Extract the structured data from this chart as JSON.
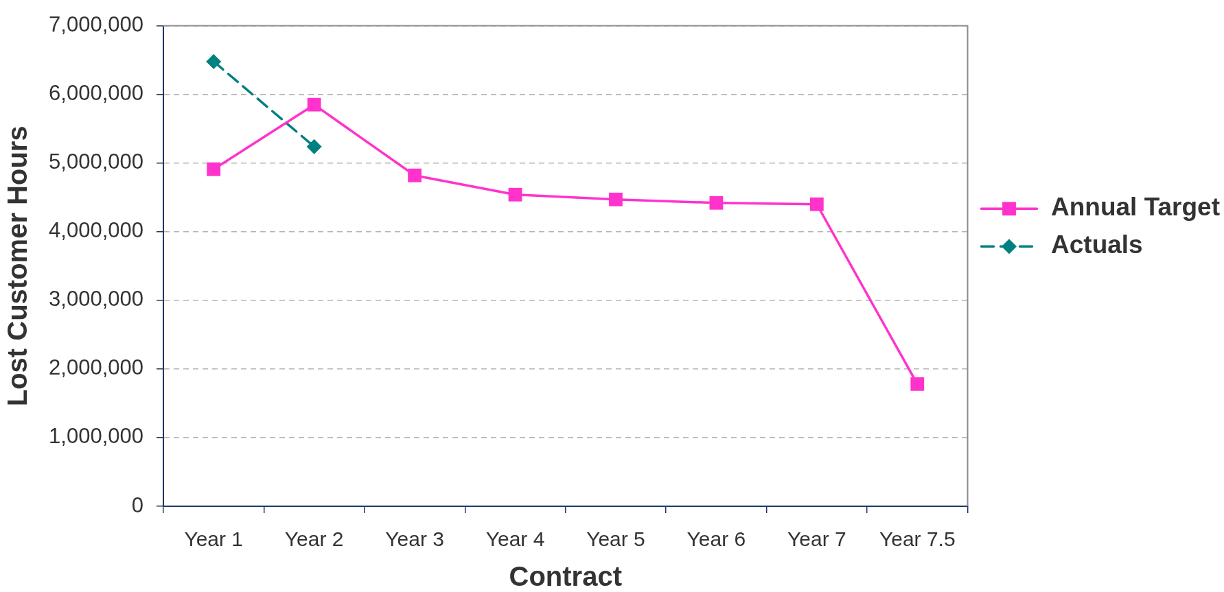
{
  "chart_data": {
    "type": "line",
    "xlabel": "Contract",
    "ylabel": "Lost Customer Hours",
    "categories": [
      "Year 1",
      "Year 2",
      "Year 3",
      "Year 4",
      "Year 5",
      "Year 6",
      "Year 7",
      "Year 7.5"
    ],
    "series": [
      {
        "name": "Annual Target",
        "color": "#ff33cc",
        "marker": "square",
        "line_style": "solid",
        "values": [
          4910000,
          5850000,
          4820000,
          4540000,
          4470000,
          4420000,
          4400000,
          1780000
        ]
      },
      {
        "name": "Actuals",
        "color": "#008080",
        "marker": "diamond",
        "line_style": "dashed",
        "values": [
          6480000,
          5240000,
          null,
          null,
          null,
          null,
          null,
          null
        ]
      }
    ],
    "ylim": [
      0,
      7000000
    ],
    "yticks": [
      {
        "value": 0,
        "label": "0"
      },
      {
        "value": 1000000,
        "label": "1,000,000"
      },
      {
        "value": 2000000,
        "label": "2,000,000"
      },
      {
        "value": 3000000,
        "label": "3,000,000"
      },
      {
        "value": 4000000,
        "label": "4,000,000"
      },
      {
        "value": 5000000,
        "label": "5,000,000"
      },
      {
        "value": 6000000,
        "label": "6,000,000"
      },
      {
        "value": 7000000,
        "label": "7,000,000"
      }
    ],
    "grid": "y",
    "legend": "right"
  }
}
